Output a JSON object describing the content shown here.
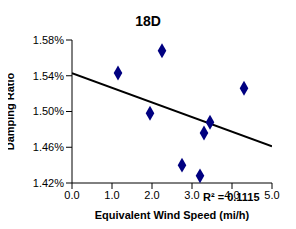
{
  "chart_data": {
    "type": "scatter",
    "title": "18D",
    "x_label": "Equivalent Wind Speed (mi/h)",
    "y_label": "Damping Ratio",
    "annotations": [
      "R² = 0.1115"
    ],
    "series": [
      {
        "name": "Damping Ratio",
        "color": "#000080",
        "marker": "diamond",
        "x": [
          1.15,
          1.95,
          2.25,
          2.75,
          3.2,
          3.3,
          3.45,
          4.3
        ],
        "values": [
          1.543,
          1.498,
          1.568,
          1.44,
          1.428,
          1.476,
          1.488,
          1.526
        ]
      }
    ],
    "trend_line": {
      "color": "#000000",
      "x": [
        0,
        5
      ],
      "values": [
        1.543,
        1.461
      ]
    },
    "xlim": [
      0,
      5
    ],
    "xticks": [
      {
        "value": 0,
        "label": "0.0"
      },
      {
        "value": 1,
        "label": "1.0"
      },
      {
        "value": 2,
        "label": "2.0"
      },
      {
        "value": 3,
        "label": "3.0"
      },
      {
        "value": 4,
        "label": "4.0"
      },
      {
        "value": 5,
        "label": "5.0"
      }
    ],
    "ylim": [
      1.42,
      1.58
    ],
    "yticks": [
      {
        "value": 1.42,
        "label": "1.42%"
      },
      {
        "value": 1.46,
        "label": "1.46%"
      },
      {
        "value": 1.5,
        "label": "1.50%"
      },
      {
        "value": 1.54,
        "label": "1.54%"
      },
      {
        "value": 1.58,
        "label": "1.58%"
      }
    ],
    "grid": false
  }
}
